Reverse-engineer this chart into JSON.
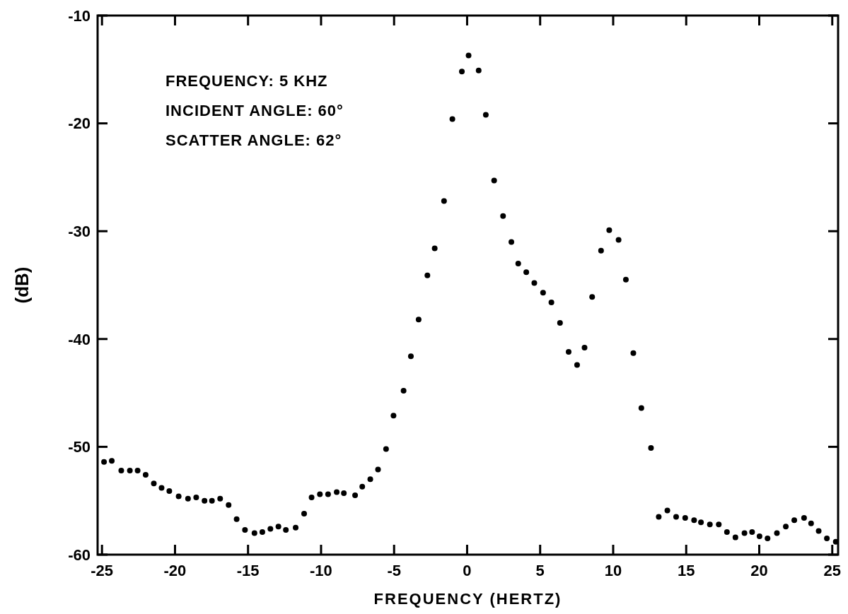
{
  "chart_data": {
    "type": "scatter",
    "xlabel": "FREQUENCY (HERTZ)",
    "ylabel": "(dB)",
    "marker": "circle",
    "annotations": [
      "FREQUENCY: 5 KHZ",
      "INCIDENT ANGLE: 60°",
      "SCATTER ANGLE: 62°"
    ],
    "xlim": [
      -25.3,
      25.4
    ],
    "ylim": [
      -60,
      -10
    ],
    "xticks": [
      -25,
      -20,
      -15,
      -10,
      -5,
      0,
      5,
      10,
      15,
      20,
      25
    ],
    "yticks": [
      -60,
      -50,
      -40,
      -30,
      -20,
      -10
    ],
    "series": [
      {
        "color": "#000000",
        "x": [
          -24.86,
          -24.33,
          -23.68,
          -23.09,
          -22.56,
          -22.01,
          -21.45,
          -20.92,
          -20.39,
          -19.75,
          -19.11,
          -18.55,
          -17.98,
          -17.47,
          -16.91,
          -16.33,
          -15.78,
          -15.21,
          -14.56,
          -14.02,
          -13.47,
          -12.92,
          -12.41,
          -11.74,
          -11.16,
          -10.65,
          -10.08,
          -9.52,
          -8.93,
          -8.44,
          -7.67,
          -7.18,
          -6.63,
          -6.1,
          -5.55,
          -5.04,
          -4.35,
          -3.85,
          -3.32,
          -2.72,
          -2.22,
          -1.58,
          -1.01,
          -0.36,
          0.1,
          0.79,
          1.28,
          1.85,
          2.46,
          3.03,
          3.5,
          4.05,
          4.6,
          5.2,
          5.77,
          6.36,
          6.95,
          7.53,
          8.04,
          8.56,
          9.17,
          9.73,
          10.37,
          10.87,
          11.38,
          11.93,
          12.59,
          13.12,
          13.71,
          14.31,
          14.93,
          15.54,
          16.01,
          16.62,
          17.23,
          17.79,
          18.37,
          18.99,
          19.51,
          20.02,
          20.57,
          21.21,
          21.82,
          22.4,
          23.07,
          23.55,
          24.07,
          24.63,
          25.24
        ],
        "values": [
          -51.4,
          -51.3,
          -52.2,
          -52.2,
          -52.2,
          -52.6,
          -53.4,
          -53.8,
          -54.1,
          -54.6,
          -54.8,
          -54.7,
          -55.0,
          -55.0,
          -54.8,
          -55.4,
          -56.7,
          -57.7,
          -58.0,
          -57.9,
          -57.6,
          -57.4,
          -57.7,
          -57.5,
          -56.2,
          -54.7,
          -54.4,
          -54.4,
          -54.2,
          -54.3,
          -54.5,
          -53.7,
          -53.0,
          -52.1,
          -50.2,
          -47.1,
          -44.8,
          -41.6,
          -38.2,
          -34.1,
          -31.6,
          -27.2,
          -19.6,
          -15.2,
          -13.7,
          -15.1,
          -19.2,
          -25.3,
          -28.6,
          -31.0,
          -33.0,
          -33.8,
          -34.8,
          -35.7,
          -36.6,
          -38.5,
          -41.2,
          -42.4,
          -40.8,
          -36.1,
          -31.8,
          -29.9,
          -30.8,
          -34.5,
          -41.3,
          -46.4,
          -50.1,
          -56.5,
          -55.9,
          -56.5,
          -56.6,
          -56.8,
          -57.0,
          -57.2,
          -57.2,
          -57.9,
          -58.4,
          -58.0,
          -57.9,
          -58.3,
          -58.5,
          -58.0,
          -57.4,
          -56.8,
          -56.6,
          -57.1,
          -57.8,
          -58.5,
          -58.8
        ]
      }
    ]
  }
}
